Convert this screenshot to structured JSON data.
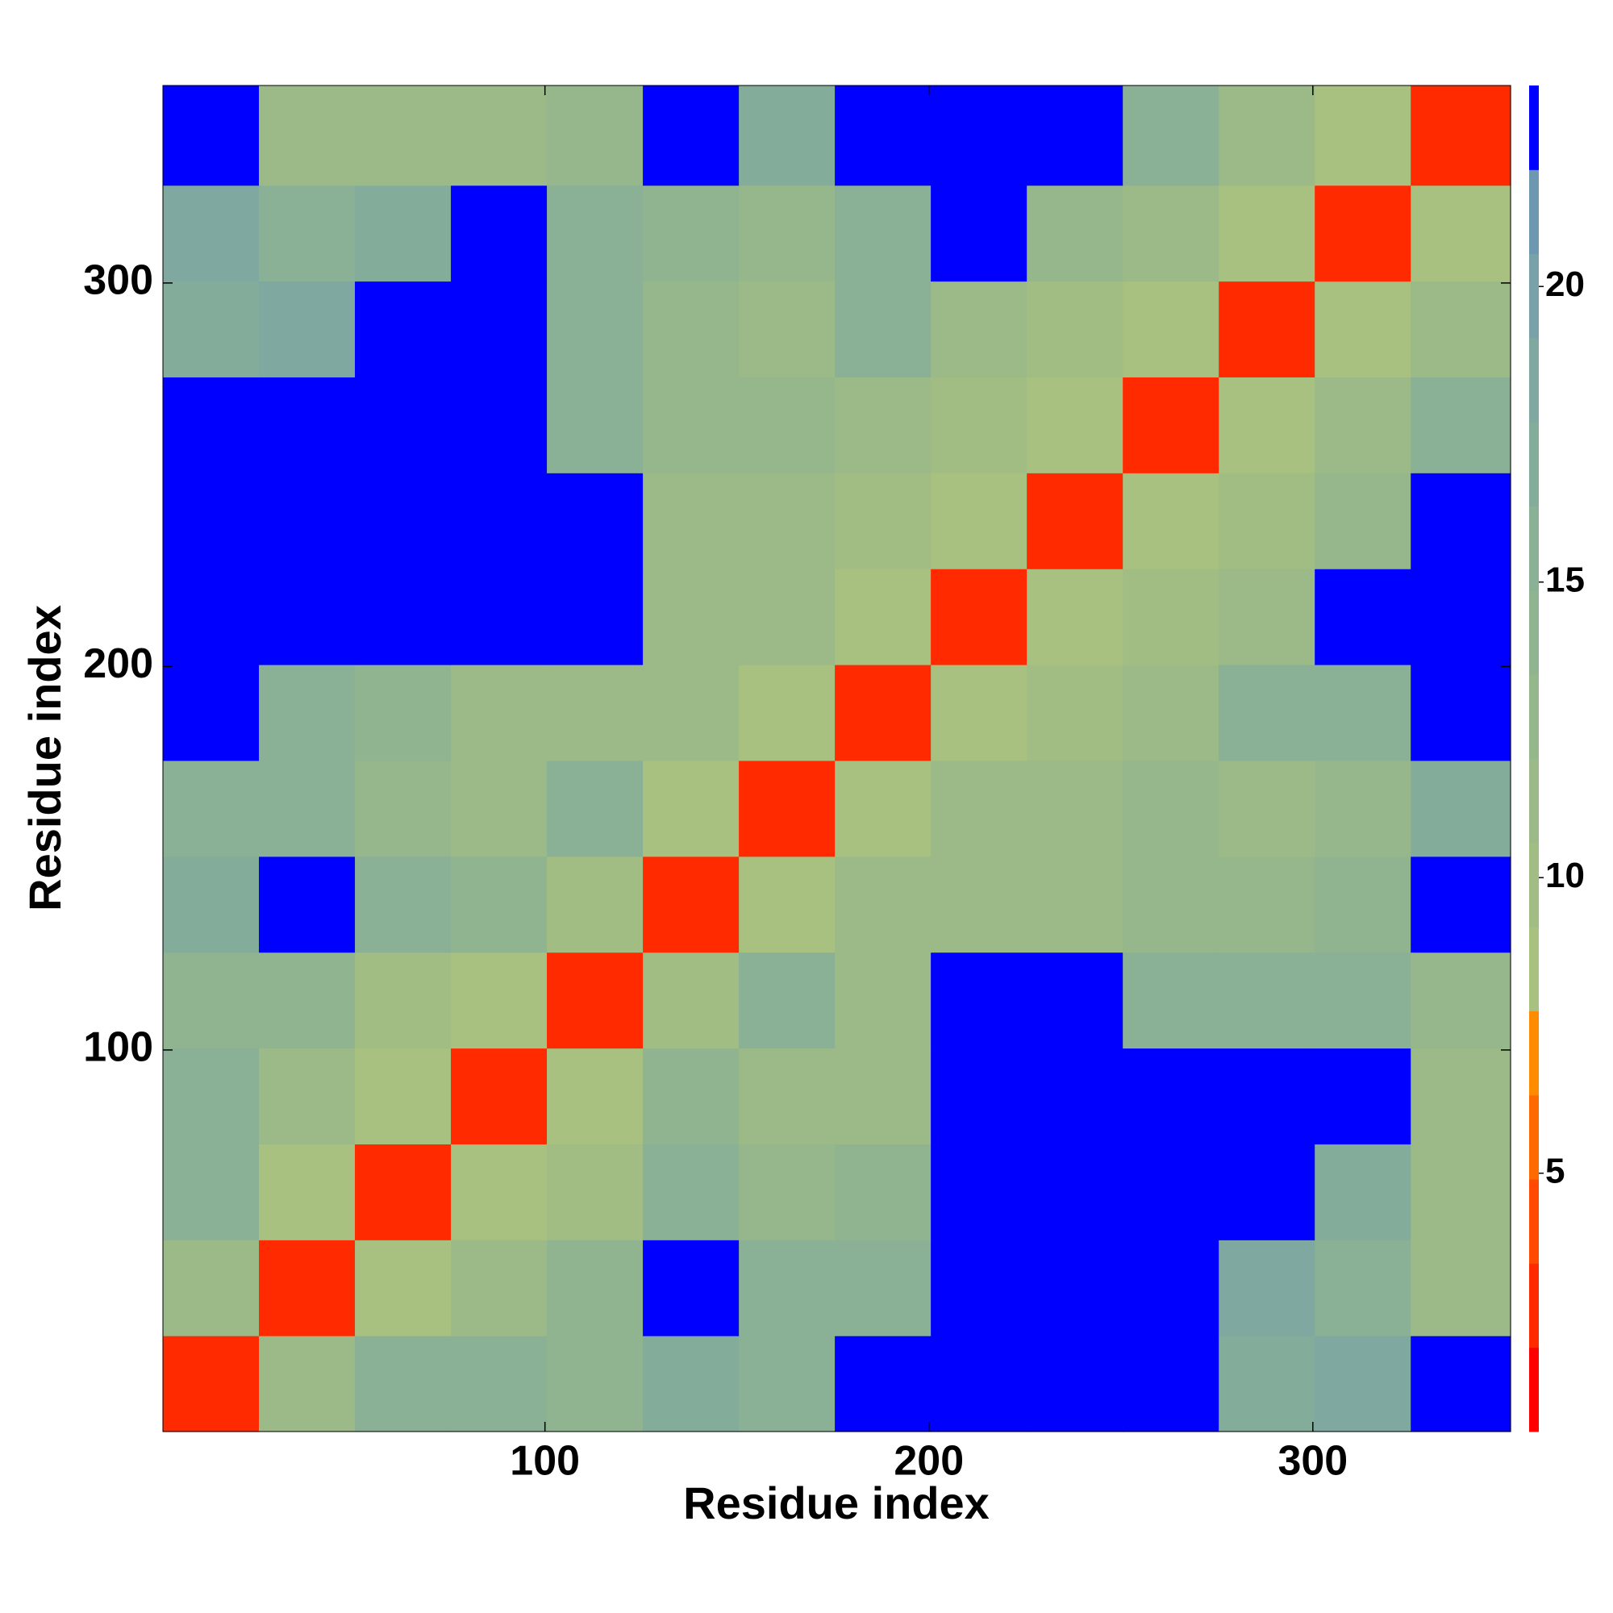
{
  "chart_data": {
    "type": "heatmap",
    "xlabel": "Residue index",
    "ylabel": "Residue index",
    "xlim": [
      0.5,
      351.5
    ],
    "ylim": [
      0.5,
      351.5
    ],
    "xticks": [
      100,
      200,
      300
    ],
    "yticks": [
      100,
      200,
      300
    ],
    "x_edges": [
      0.5,
      25.5,
      50.5,
      75.5,
      100.5,
      125.5,
      150.5,
      175.5,
      200.5,
      225.5,
      250.5,
      275.5,
      300.5,
      325.5,
      351.5
    ],
    "y_edges": [
      0.5,
      25.5,
      50.5,
      75.5,
      100.5,
      125.5,
      150.5,
      175.5,
      200.5,
      225.5,
      250.5,
      275.5,
      300.5,
      325.5,
      351.5
    ],
    "z": [
      [
        3,
        12,
        16,
        16,
        14,
        17,
        15,
        23,
        23,
        23,
        23,
        17,
        18,
        23
      ],
      [
        12,
        3,
        9,
        11,
        14,
        23,
        16,
        15,
        23,
        23,
        23,
        19,
        15,
        12
      ],
      [
        16,
        9,
        3,
        9,
        10,
        16,
        13,
        14,
        23,
        23,
        23,
        23,
        17,
        11
      ],
      [
        16,
        11,
        9,
        3,
        9,
        14,
        12,
        12,
        23,
        23,
        23,
        23,
        23,
        12
      ],
      [
        14,
        14,
        10,
        9,
        3,
        10,
        15,
        12,
        23,
        23,
        16,
        15,
        15,
        13
      ],
      [
        17,
        23,
        16,
        14,
        10,
        3,
        9,
        11,
        12,
        12,
        13,
        13,
        14,
        23
      ],
      [
        15,
        16,
        13,
        12,
        15,
        9,
        3,
        9,
        11,
        12,
        13,
        12,
        13,
        17
      ],
      [
        23,
        15,
        14,
        12,
        12,
        11,
        9,
        3,
        9,
        10,
        12,
        15,
        16,
        23
      ],
      [
        23,
        23,
        23,
        23,
        23,
        12,
        11,
        9,
        3,
        8,
        10,
        12,
        23,
        23
      ],
      [
        23,
        23,
        23,
        23,
        23,
        12,
        12,
        10,
        8,
        3,
        9,
        10,
        13,
        23
      ],
      [
        23,
        23,
        23,
        23,
        16,
        13,
        13,
        12,
        10,
        9,
        3,
        9,
        11,
        15
      ],
      [
        17,
        19,
        23,
        23,
        15,
        13,
        12,
        15,
        12,
        10,
        9,
        3,
        9,
        12
      ],
      [
        18,
        15,
        17,
        23,
        15,
        14,
        13,
        16,
        23,
        13,
        11,
        9,
        3,
        9
      ],
      [
        23,
        12,
        11,
        12,
        13,
        23,
        17,
        23,
        23,
        23,
        15,
        12,
        9,
        3
      ]
    ],
    "zlim": [
      0.63,
      23.4
    ],
    "zticks": [
      5,
      10,
      15,
      20
    ],
    "colors": [
      "#ff0000",
      "#ff2a00",
      "#ff4a00",
      "#ff6a00",
      "#ff8c00",
      "#a8c080",
      "#a2bd84",
      "#9cba88",
      "#96b78c",
      "#90b490",
      "#8ab095",
      "#84ac9a",
      "#7ea8a0",
      "#78a2a8",
      "#6e98b0",
      "#0000ff"
    ]
  }
}
